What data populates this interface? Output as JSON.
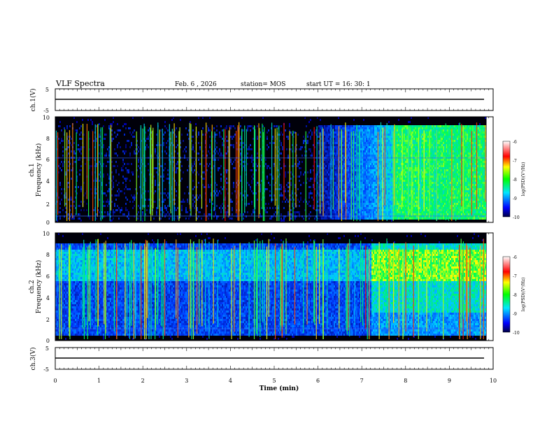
{
  "chart_data": {
    "type": "heatmap",
    "title": "VLF Spectra",
    "date": "Feb. 6 , 2026",
    "station": "station= MOS",
    "start_ut": "start UT = 16: 30: 1",
    "xlabel": "Time (min)",
    "x_range": [
      0,
      10
    ],
    "x_ticks": [
      "0",
      "1",
      "2",
      "3",
      "4",
      "5",
      "6",
      "7",
      "8",
      "9",
      "10"
    ],
    "data_end_min": 9.85,
    "panels": [
      {
        "id": "ch1-voltage",
        "kind": "line",
        "ylabel": "ch.1(V)",
        "y_range": [
          -5,
          5
        ],
        "y_ticks": [
          "5",
          "-5"
        ],
        "level": 0
      },
      {
        "id": "ch1-spectrogram",
        "kind": "spectrogram",
        "ylabel_top": "ch.1",
        "ylabel": "Frequency (kHz)",
        "y_range": [
          0,
          10
        ],
        "y_ticks": [
          "0",
          "2",
          "4",
          "6",
          "8",
          "10"
        ],
        "colorbar": {
          "label": "log(PSD)(V²/Hz)",
          "range": [
            -10,
            -6
          ],
          "ticks": [
            "-6",
            "-7",
            "-8",
            "-9",
            "-10"
          ]
        }
      },
      {
        "id": "ch2-spectrogram",
        "kind": "spectrogram",
        "ylabel_top": "ch.2",
        "ylabel": "Frequency (kHz)",
        "y_range": [
          0,
          10
        ],
        "y_ticks": [
          "0",
          "2",
          "4",
          "6",
          "8",
          "10"
        ],
        "colorbar": {
          "label": "log(PSD)(V²/Hz)",
          "range": [
            -10,
            -6
          ],
          "ticks": [
            "-6",
            "-7",
            "-8",
            "-9",
            "-10"
          ]
        }
      },
      {
        "id": "ch3-voltage",
        "kind": "line",
        "ylabel": "ch.3(V)",
        "y_range": [
          -5,
          5
        ],
        "y_ticks": [
          "5",
          "-5"
        ],
        "level": 0
      }
    ],
    "colors": {
      "low": "#000066",
      "mid_low": "#0000ff",
      "mid": "#00ffff",
      "mid_high": "#00ff00",
      "high": "#ff0000"
    }
  }
}
